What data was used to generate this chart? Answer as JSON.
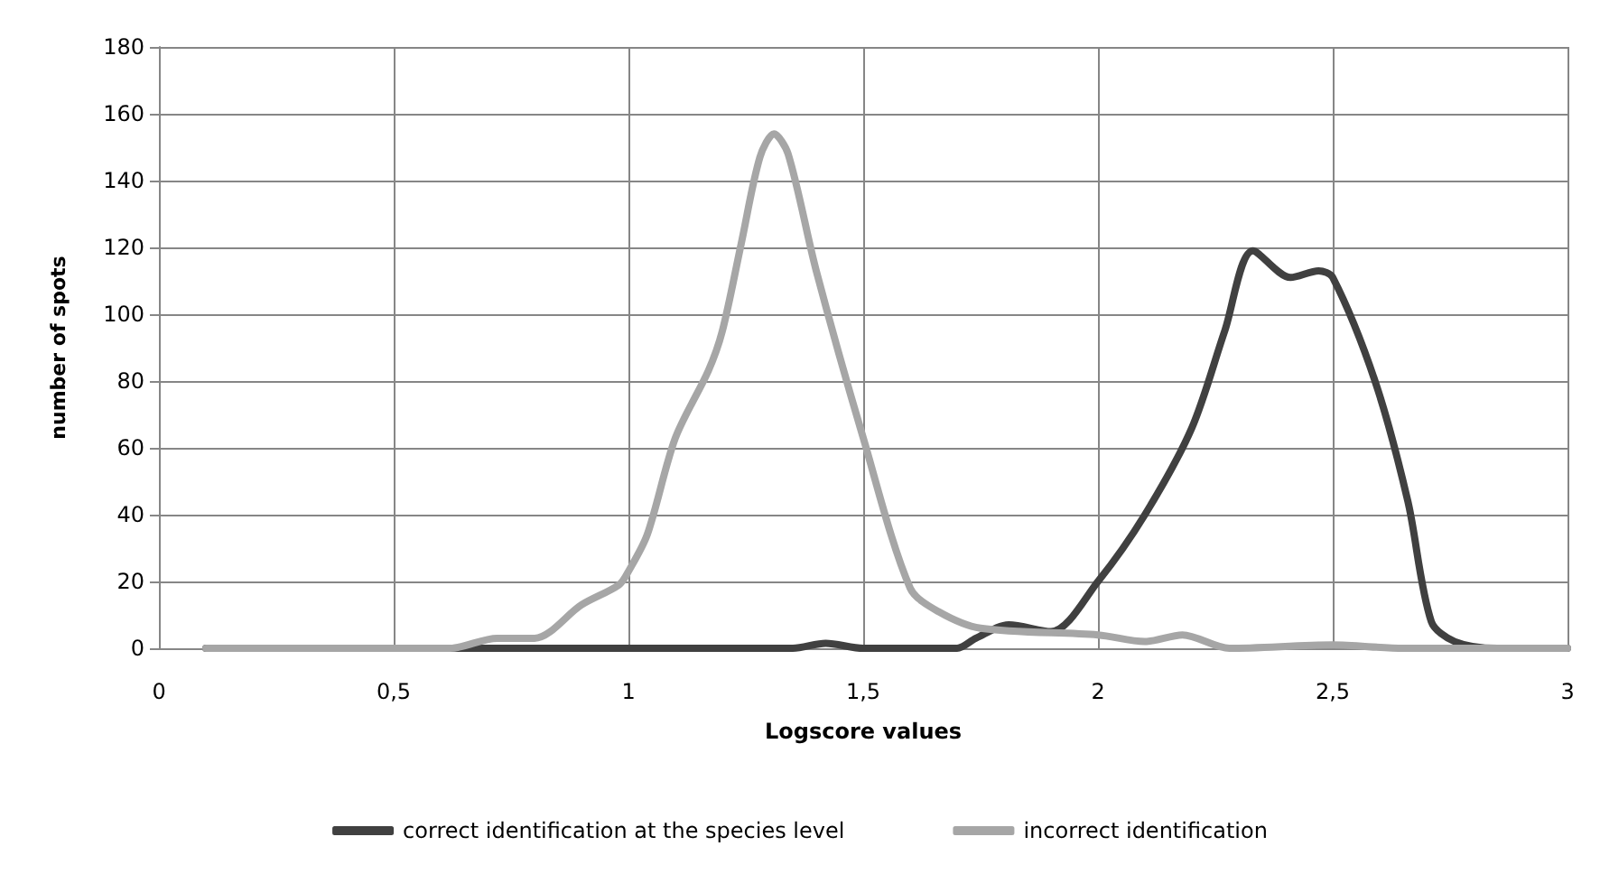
{
  "chart_data": {
    "type": "line",
    "xlabel": "Logscore values",
    "ylabel": "number of spots",
    "xlim": [
      0,
      3
    ],
    "xticks": [
      0,
      {
        "value": 0.5,
        "label": "0,5"
      },
      1,
      {
        "value": 1.5,
        "label": "1,5"
      },
      2,
      {
        "value": 2.5,
        "label": "2,5"
      },
      3
    ],
    "ylim": [
      0,
      180
    ],
    "yticks": [
      0,
      20,
      40,
      60,
      80,
      100,
      120,
      140,
      160,
      180
    ],
    "grid": true,
    "legend": "bottom",
    "marker": "none",
    "line_style": "solid",
    "series": [
      {
        "name": "correct identification at the species level",
        "color": "#404040",
        "x": [
          0.1,
          0.5,
          1.0,
          1.35,
          1.42,
          1.5,
          1.7,
          1.74,
          1.81,
          1.9,
          2.0,
          2.1,
          2.2,
          2.27,
          2.33,
          2.41,
          2.47,
          2.5,
          2.59,
          2.66,
          2.71,
          2.76,
          2.85,
          3.0
        ],
        "values": [
          0,
          0,
          0,
          0,
          1.5,
          0,
          0,
          3,
          7,
          5,
          20,
          40,
          66,
          95,
          119,
          111,
          113,
          111,
          80,
          44,
          8,
          2,
          0,
          0
        ]
      },
      {
        "name": "incorrect identification",
        "color": "#a6a6a6",
        "x": [
          0.1,
          0.5,
          0.62,
          0.72,
          0.8,
          0.9,
          0.98,
          1.0,
          1.04,
          1.1,
          1.17,
          1.2,
          1.24,
          1.28,
          1.31,
          1.34,
          1.4,
          1.5,
          1.6,
          1.66,
          1.75,
          2.0,
          2.1,
          2.18,
          2.28,
          2.5,
          2.65,
          3.0
        ],
        "values": [
          0,
          0,
          0,
          3,
          3,
          13,
          19,
          23,
          34,
          63,
          83,
          95,
          121,
          147,
          154,
          148,
          113,
          63,
          18,
          11,
          6,
          4,
          2,
          4,
          0,
          1,
          0,
          0
        ]
      }
    ]
  }
}
